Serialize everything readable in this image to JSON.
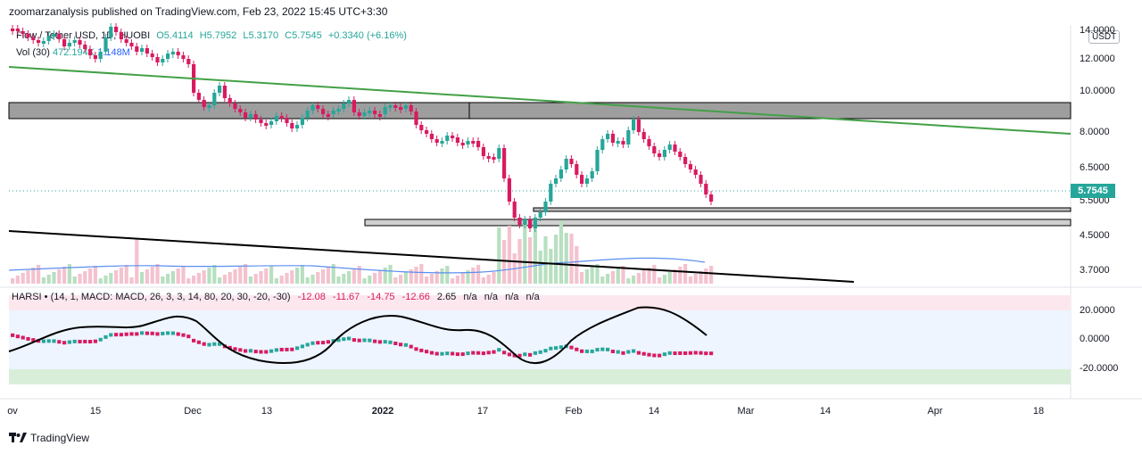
{
  "header": {
    "published": "zoomarzanalysis published on TradingView.com, Feb 23, 2022 15:45 UTC+3:30"
  },
  "legend": {
    "symbol": "Flow / Tether USD, 1D, HUOBI",
    "open": "O5.4114",
    "high": "H5.7952",
    "low": "L5.3170",
    "close": "C5.7545",
    "change": "+0.3340 (+6.16%)",
    "vol_label": "Vol (30)",
    "vol_value": "472.194K",
    "vol_ma": "1.148M"
  },
  "indicator": {
    "label": "HARSI • (14, 1, MACD: MACD, 26, 3, 3, 14, 80, 20, 30, -20, -30)",
    "values": [
      "-12.08",
      "-11.67",
      "-14.75",
      "-12.66",
      "2.65",
      "n/a",
      "n/a",
      "n/a",
      "n/a"
    ]
  },
  "price_axis": {
    "currency": "USDT",
    "ticks": [
      "14.0000",
      "12.0000",
      "10.0000",
      "8.0000",
      "6.5000",
      "5.5000",
      "4.5000",
      "3.7000"
    ],
    "last_price": "5.7545"
  },
  "indicator_axis": {
    "ticks": [
      "20.0000",
      "0.0000",
      "-20.0000"
    ]
  },
  "date_axis": {
    "labels": [
      "ov",
      "15",
      "Dec",
      "13",
      "2022",
      "17",
      "Feb",
      "14",
      "Mar",
      "14",
      "Apr",
      "18"
    ]
  },
  "footer": {
    "brand": "TradingView"
  },
  "colors": {
    "up": "#26a69a",
    "down": "#d81b60",
    "trend_green": "#43a047",
    "trend_black": "#000000",
    "zone_gray": "#9e9e9e",
    "vol_ma_blue": "#5b8ef0",
    "band_red": "#fde7ee",
    "band_blue": "#eef5ff",
    "band_green": "#d8eed8"
  }
}
